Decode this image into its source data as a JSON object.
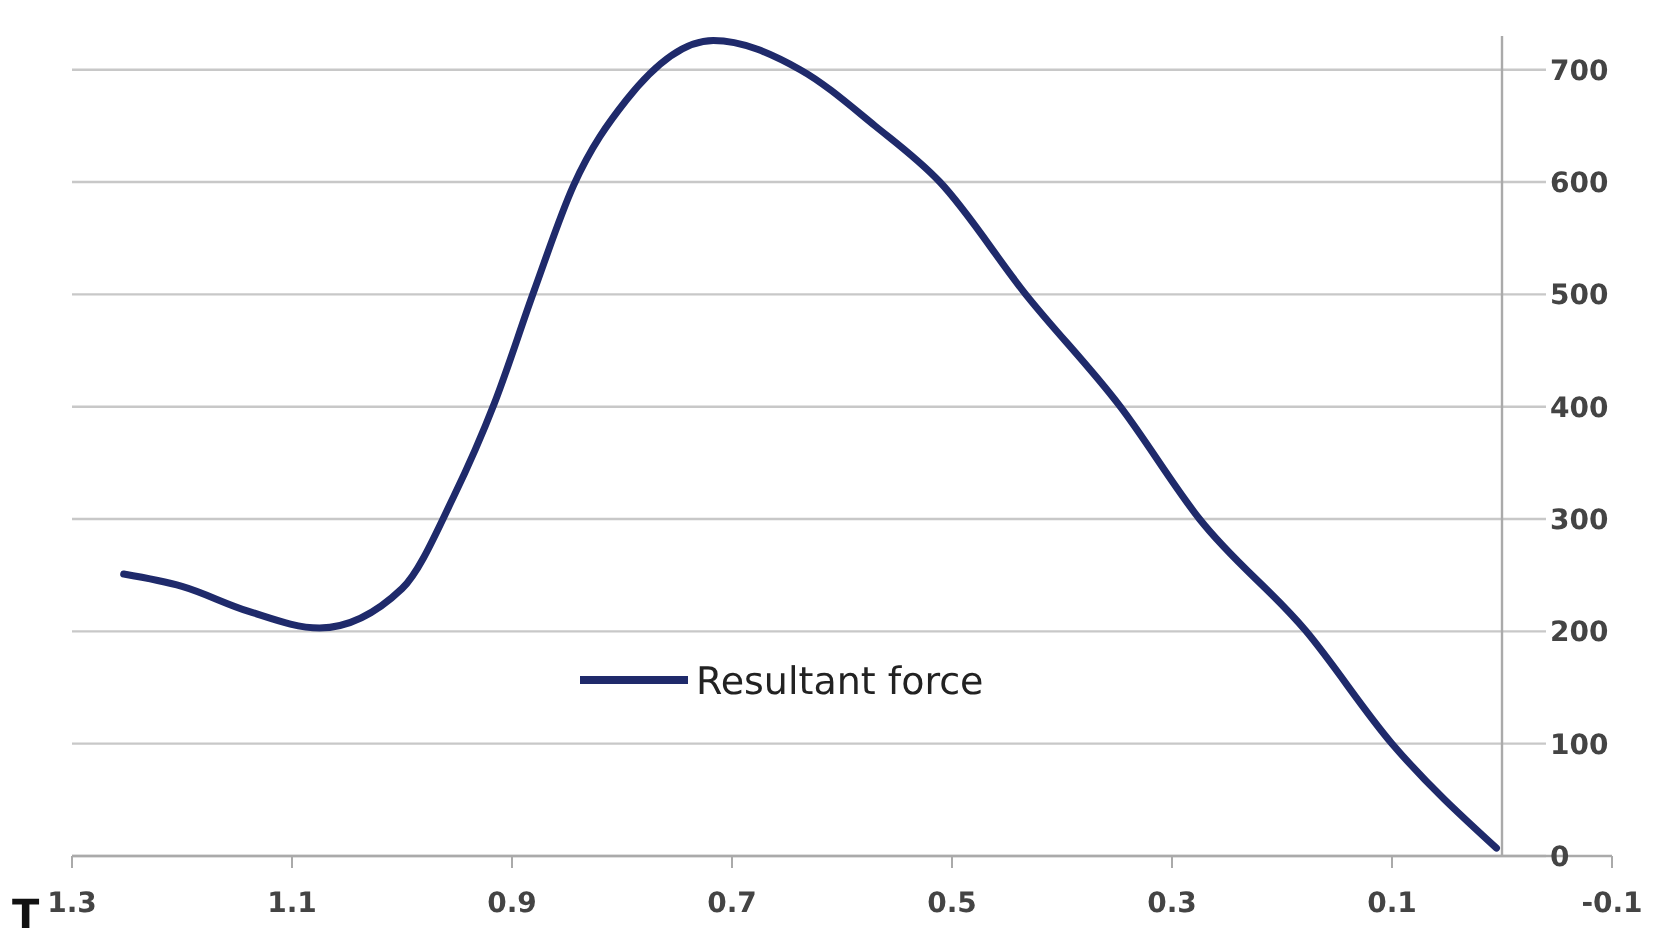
{
  "chart_data": {
    "type": "line",
    "x": [
      1.253,
      1.2,
      1.14,
      1.075,
      1.0,
      0.953,
      0.916,
      0.88,
      0.844,
      0.796,
      0.717,
      0.638,
      0.57,
      0.511,
      0.433,
      0.347,
      0.275,
      0.178,
      0.1,
      0.005
    ],
    "series": [
      {
        "name": "Resultant force",
        "color": "#1f2a6b",
        "values": [
          251,
          240,
          218,
          203,
          238,
          320,
          403,
          503,
          597,
          673,
          726,
          700,
          650,
          600,
          500,
          400,
          300,
          200,
          100,
          7
        ]
      }
    ],
    "xlim": [
      1.3,
      -0.1
    ],
    "xticks": [
      1.3,
      1.1,
      0.9,
      0.7,
      0.5,
      0.3,
      0.1,
      -0.1
    ],
    "ylim": [
      0,
      730
    ],
    "yticks": [
      0,
      100,
      200,
      300,
      400,
      500,
      600,
      700
    ],
    "grid": "y",
    "legend": "bottom",
    "marker": "none",
    "line_style": "solid",
    "annotations": [
      "T"
    ]
  }
}
